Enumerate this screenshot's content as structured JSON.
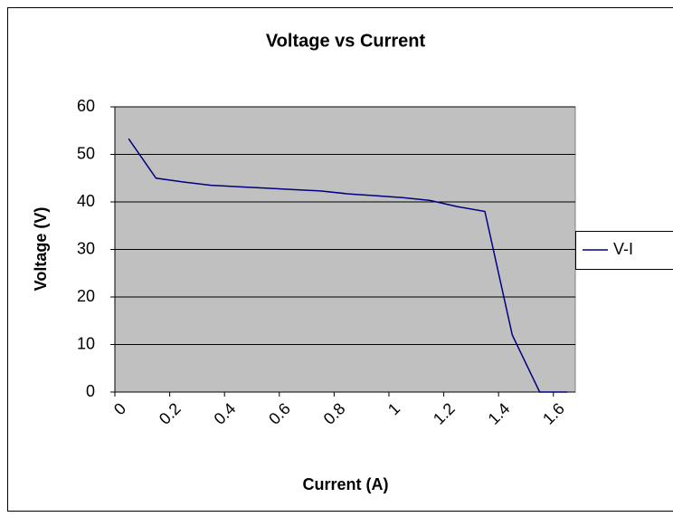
{
  "chart_data": {
    "type": "line",
    "title": "Voltage vs Current",
    "x_label": "Current (A)",
    "y_label": "Voltage (V)",
    "x": [
      0.05,
      0.15,
      0.25,
      0.35,
      0.45,
      0.55,
      0.65,
      0.75,
      0.85,
      0.95,
      1.05,
      1.15,
      1.25,
      1.35,
      1.45,
      1.55,
      1.65
    ],
    "series": [
      {
        "name": "V-I",
        "color": "#000080",
        "values": [
          53.3,
          45,
          44.2,
          43.5,
          43.2,
          42.9,
          42.6,
          42.3,
          41.7,
          41.3,
          40.9,
          40.3,
          39,
          38,
          12,
          0,
          0
        ]
      }
    ],
    "xlim": [
      0,
      1.68
    ],
    "xticks": [
      0,
      0.2,
      0.4,
      0.6,
      0.8,
      1,
      1.2,
      1.4,
      1.6
    ],
    "ylim": [
      0,
      60
    ],
    "yticks": [
      0,
      10,
      20,
      30,
      40,
      50,
      60
    ],
    "grid": true,
    "plot_background": "#c0c0c0",
    "legend": "right"
  }
}
